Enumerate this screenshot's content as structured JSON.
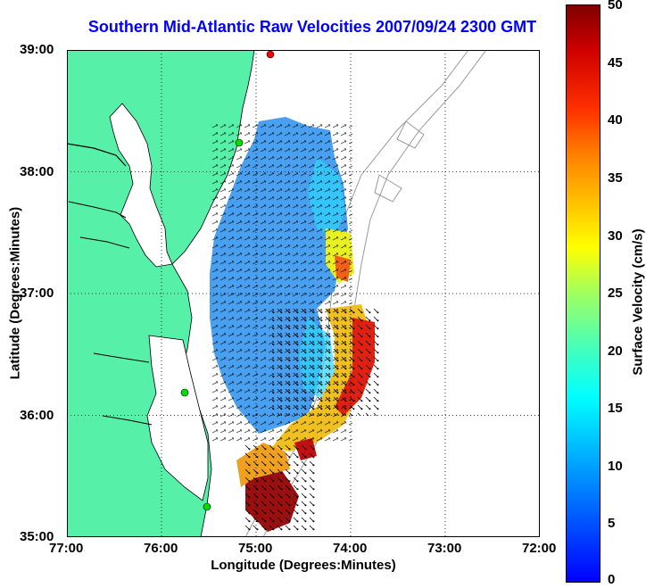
{
  "title": "Southern Mid-Atlantic Raw Velocities 2007/09/24 2300 GMT",
  "xlabel": "Longitude (Degrees:Minutes)",
  "ylabel": "Latitude (Degrees:Minutes)",
  "colorbar_label": "Surface Velocity (cm/s)",
  "x_ticks": [
    "77:00",
    "76:00",
    "75:00",
    "74:00",
    "73:00",
    "72:00"
  ],
  "y_ticks": [
    "39:00",
    "38:00",
    "37:00",
    "36:00",
    "35:00"
  ],
  "colorbar_ticks": [
    "50",
    "45",
    "40",
    "35",
    "30",
    "25",
    "20",
    "15",
    "10",
    "5",
    "0"
  ],
  "colors": {
    "land": "#57f0a8",
    "water": "#ffffff",
    "title": "#0000ff",
    "station_marker": "#00dd00",
    "station_marker_alt": "#ff0000",
    "bathymetry_contour": "#999999"
  },
  "chart_data": {
    "type": "heatmap",
    "x_axis": {
      "label": "Longitude (Degrees:Minutes)",
      "range": [
        -77.0,
        -72.0
      ]
    },
    "y_axis": {
      "label": "Latitude (Degrees:Minutes)",
      "range": [
        35.0,
        39.0
      ]
    },
    "colorbar": {
      "label": "Surface Velocity (cm/s)",
      "range": [
        0,
        50
      ],
      "colormap": "jet"
    },
    "grid": "dotted"
  }
}
